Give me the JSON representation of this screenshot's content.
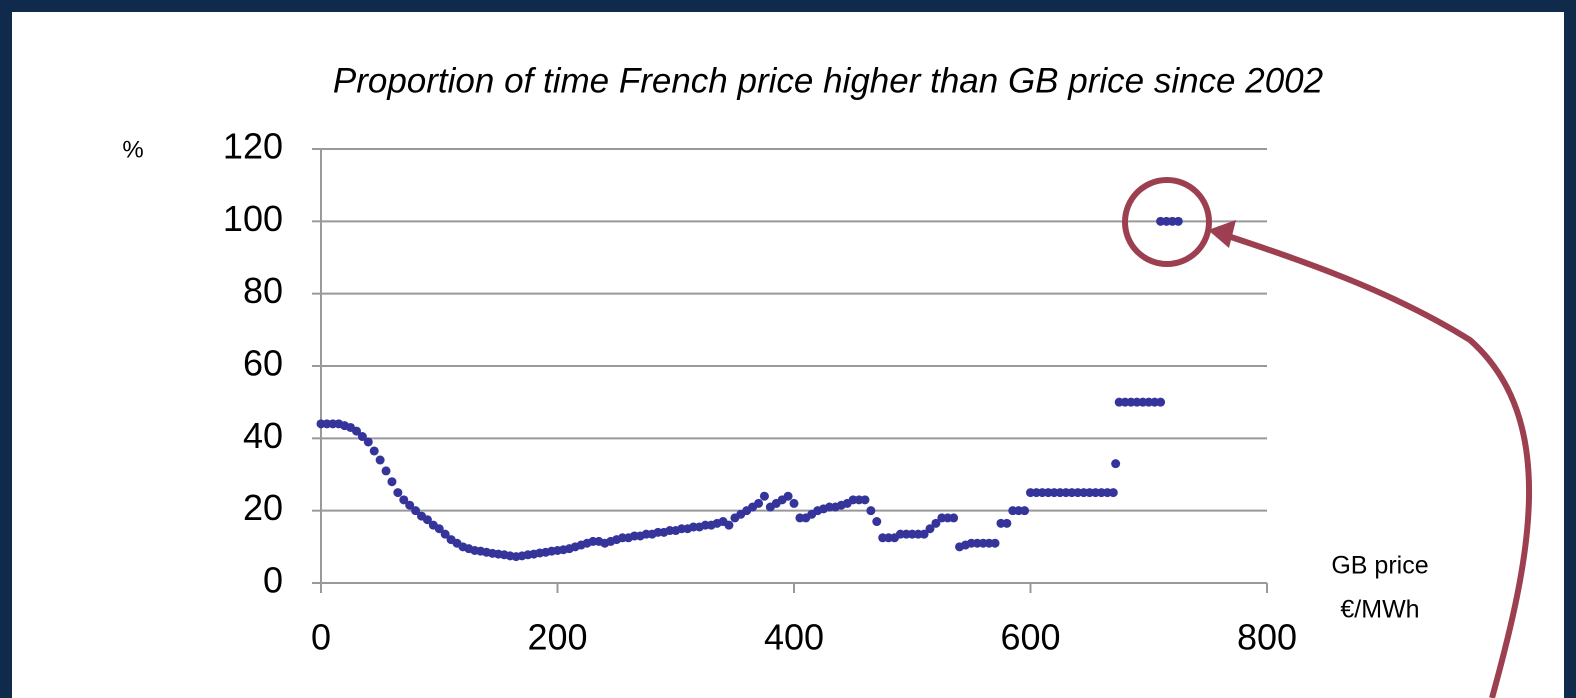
{
  "chart_data": {
    "type": "scatter",
    "title": "Proportion of time French price higher than GB price since 2002",
    "y_axis_label": "%",
    "x_axis_label_line1": "GB price",
    "x_axis_label_line2": "€/MWh",
    "color": "#34349a",
    "grid": true,
    "xlim": [
      0,
      800
    ],
    "ylim": [
      0,
      120
    ],
    "xticks": [
      0,
      200,
      400,
      600,
      800
    ],
    "yticks": [
      0,
      20,
      40,
      60,
      80,
      100,
      120
    ],
    "x": [
      0,
      5,
      10,
      15,
      20,
      25,
      30,
      35,
      40,
      45,
      50,
      55,
      60,
      65,
      70,
      75,
      80,
      85,
      90,
      95,
      100,
      105,
      110,
      115,
      120,
      125,
      130,
      135,
      140,
      145,
      150,
      155,
      160,
      165,
      170,
      175,
      180,
      185,
      190,
      195,
      200,
      205,
      210,
      215,
      220,
      225,
      230,
      235,
      240,
      245,
      250,
      255,
      260,
      265,
      270,
      275,
      280,
      285,
      290,
      295,
      300,
      305,
      310,
      315,
      320,
      325,
      330,
      335,
      340,
      345,
      350,
      355,
      360,
      365,
      370,
      375,
      380,
      385,
      390,
      395,
      400,
      405,
      410,
      415,
      420,
      425,
      430,
      435,
      440,
      445,
      450,
      455,
      460,
      465,
      470,
      475,
      480,
      485,
      490,
      495,
      500,
      505,
      510,
      515,
      520,
      525,
      530,
      535,
      540,
      545,
      550,
      555,
      560,
      565,
      570,
      575,
      580,
      585,
      590,
      595,
      600,
      605,
      610,
      615,
      620,
      625,
      630,
      635,
      640,
      645,
      650,
      655,
      660,
      665,
      670,
      672,
      675,
      680,
      685,
      690,
      695,
      700,
      705,
      710,
      710,
      715,
      720,
      725
    ],
    "values": [
      44,
      44,
      44,
      44,
      43.5,
      43,
      42,
      40.5,
      39,
      36.5,
      34,
      31,
      28,
      25,
      23,
      21.5,
      20,
      18.5,
      17.5,
      16,
      15,
      13.5,
      12,
      11,
      10,
      9.5,
      9,
      8.8,
      8.5,
      8.2,
      8,
      7.8,
      7.5,
      7.3,
      7.5,
      7.8,
      8,
      8.3,
      8.5,
      8.8,
      9,
      9.2,
      9.5,
      10,
      10.5,
      11,
      11.5,
      11.5,
      11,
      11.5,
      12,
      12.5,
      12.5,
      13,
      13,
      13.5,
      13.5,
      14,
      14,
      14.5,
      14.5,
      15,
      15,
      15.5,
      15.5,
      16,
      16,
      16.5,
      17,
      16,
      18,
      19,
      20,
      21,
      22,
      24,
      21,
      22,
      23,
      24,
      22,
      18,
      18,
      19,
      20,
      20.5,
      21,
      21,
      21.5,
      22,
      23,
      23,
      23,
      20,
      17,
      12.5,
      12.5,
      12.5,
      13.5,
      13.5,
      13.5,
      13.5,
      13.5,
      15,
      16.5,
      18,
      18,
      18,
      10,
      10.5,
      11,
      11,
      11,
      11,
      11,
      16.5,
      16.5,
      20,
      20,
      20,
      25,
      25,
      25,
      25,
      25,
      25,
      25,
      25,
      25,
      25,
      25,
      25,
      25,
      25,
      25,
      33,
      50,
      50,
      50,
      50,
      50,
      50,
      50,
      50,
      100,
      100,
      100,
      100
    ]
  }
}
